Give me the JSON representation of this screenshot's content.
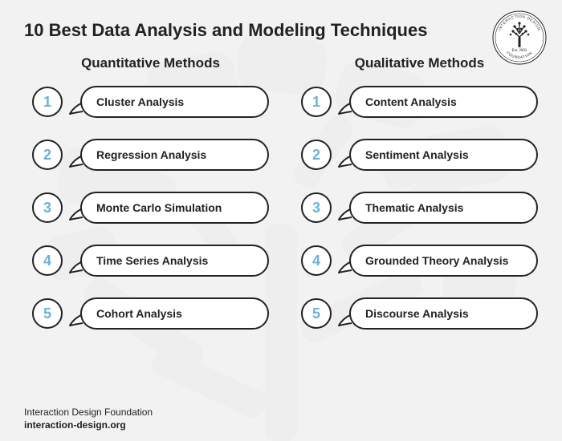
{
  "title": "10 Best Data Analysis and Modeling Techniques",
  "columns": {
    "left": {
      "header": "Quantitative Methods",
      "items": [
        {
          "num": "1",
          "label": "Cluster Analysis"
        },
        {
          "num": "2",
          "label": "Regression Analysis"
        },
        {
          "num": "3",
          "label": "Monte Carlo Simulation"
        },
        {
          "num": "4",
          "label": "Time Series Analysis"
        },
        {
          "num": "5",
          "label": "Cohort Analysis"
        }
      ]
    },
    "right": {
      "header": "Qualitative Methods",
      "items": [
        {
          "num": "1",
          "label": "Content Analysis"
        },
        {
          "num": "2",
          "label": "Sentiment Analysis"
        },
        {
          "num": "3",
          "label": "Thematic Analysis"
        },
        {
          "num": "4",
          "label": "Grounded Theory Analysis"
        },
        {
          "num": "5",
          "label": "Discourse Analysis"
        }
      ]
    }
  },
  "logo": {
    "top_text": "INTERACTION DESIGN",
    "bottom_text": "FOUNDATION",
    "year": "Est. 2002"
  },
  "footer": {
    "org": "Interaction Design Foundation",
    "site": "interaction-design.org"
  },
  "style": {
    "type": "infographic",
    "background_color": "#f2f2f2",
    "bg_watermark_color": "#d9d9d9",
    "bg_watermark_opacity": 0.15,
    "text_color": "#222222",
    "number_color": "#6fb1d6",
    "border_color": "#222222",
    "bubble_fill": "#ffffff",
    "circle_fill": "#ffffff",
    "title_fontsize": 22,
    "title_fontweight": 700,
    "column_header_fontsize": 17,
    "column_header_fontweight": 700,
    "item_label_fontsize": 14,
    "item_label_fontweight": 700,
    "number_fontsize": 18,
    "number_fontweight": 700,
    "footer_fontsize": 12,
    "circle_diameter": 38,
    "bubble_height": 40,
    "bubble_border_radius": 20,
    "border_width": 2,
    "item_gap": 26,
    "column_gap": 40,
    "logo_diameter": 70
  }
}
